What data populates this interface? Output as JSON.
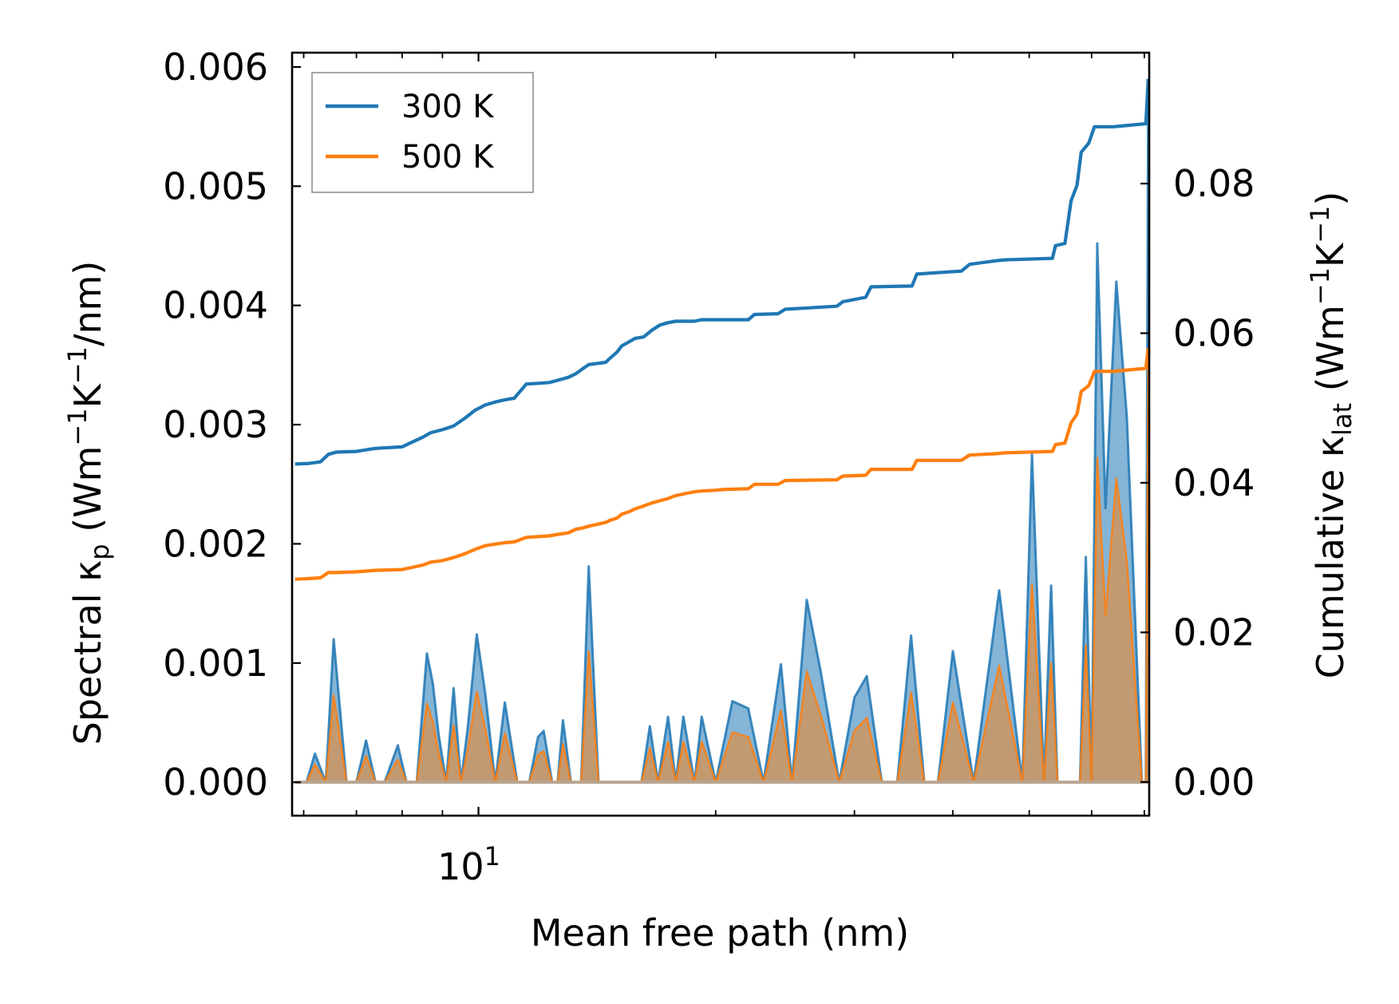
{
  "chart_data": {
    "type": "line",
    "xscale": "log",
    "xlabel": "Mean free path (nm)",
    "xlim": [
      5.8,
      71.0
    ],
    "x_major_ticks": [
      {
        "value": 10,
        "base": "10",
        "exp": "1"
      }
    ],
    "x_minor_ticks": [
      6,
      7,
      8,
      9,
      20,
      30,
      40,
      50,
      60,
      70
    ],
    "left_axis": {
      "label_prefix": "Spectral κ",
      "label_sub": "p",
      "label_unit_open": " (Wm",
      "label_sup1": "−1",
      "label_mid": "K",
      "label_sup2": "−1",
      "label_unit_close": "/nm)",
      "ylim": [
        -0.00028,
        0.00612
      ],
      "ticks": [
        "0.000",
        "0.001",
        "0.002",
        "0.003",
        "0.004",
        "0.005",
        "0.006"
      ]
    },
    "right_axis": {
      "label_prefix": "Cumulative κ",
      "label_sub": "lat",
      "label_unit_open": " (Wm",
      "label_sup1": "−1",
      "label_mid": "K",
      "label_sup2": "−1",
      "label_unit_close": ")",
      "ylim": [
        -0.0045,
        0.0975
      ],
      "ticks": [
        "0.00",
        "0.02",
        "0.04",
        "0.06",
        "0.08"
      ]
    },
    "legend": {
      "position": "upper-left",
      "entries": [
        {
          "name": "300 K",
          "color": "#1f77b4"
        },
        {
          "name": "500 K",
          "color": "#ff7f0e"
        }
      ]
    },
    "spectral_series": [
      {
        "name": "300 K",
        "color": "#1f77b4",
        "x": [
          5.85,
          6.05,
          6.2,
          6.4,
          6.55,
          6.8,
          7.0,
          7.2,
          7.4,
          7.6,
          7.9,
          8.1,
          8.35,
          8.6,
          8.75,
          8.9,
          9.1,
          9.3,
          9.5,
          9.7,
          9.95,
          10.2,
          10.5,
          10.8,
          11.2,
          11.6,
          11.9,
          12.1,
          12.4,
          12.6,
          12.8,
          13.1,
          13.5,
          13.8,
          14.2,
          14.6,
          15.0,
          15.3,
          15.7,
          16.1,
          16.5,
          16.9,
          17.4,
          17.8,
          18.2,
          18.8,
          19.2,
          20.0,
          21.0,
          22.0,
          23.0,
          24.2,
          25.0,
          26.1,
          27.2,
          28.7,
          30.0,
          31.1,
          32.5,
          34.0,
          35.4,
          36.8,
          38.3,
          40.0,
          42.5,
          45.8,
          49.0,
          50.4,
          52.2,
          53.3,
          54.3,
          55.0,
          56.0,
          57.1,
          58.0,
          59.0,
          60.0,
          61.0,
          62.5,
          64.5,
          66.5,
          69.5,
          70.3,
          70.8
        ],
        "y": [
          0,
          0,
          0.00024,
          0,
          0.0012,
          0,
          0,
          0.00035,
          0,
          0,
          0.00031,
          0,
          0,
          0.00108,
          0.00083,
          0.0004,
          0,
          0.00079,
          0,
          0.00048,
          0.00124,
          0.00074,
          0,
          0.00067,
          0,
          0,
          0.00038,
          0.00043,
          0,
          0,
          0.00052,
          0,
          0,
          0.00181,
          0,
          0,
          0,
          0,
          0,
          0,
          0.00047,
          0,
          0.00055,
          0,
          0.00055,
          0,
          0.00055,
          0,
          0.00068,
          0.00062,
          0,
          0.00099,
          0,
          0.00153,
          0.00092,
          0,
          0.00071,
          0.00089,
          0,
          0,
          0.00123,
          0,
          0,
          0.0011,
          0,
          0.00161,
          0,
          0.00275,
          0,
          0.00165,
          0,
          0,
          0,
          0,
          0,
          0.00189,
          0,
          0.00452,
          0.0023,
          0.0042,
          0.00307,
          0,
          0,
          0.00585
        ]
      },
      {
        "name": "500 K",
        "color": "#ff7f0e",
        "x": [
          5.85,
          6.05,
          6.2,
          6.4,
          6.55,
          6.8,
          7.0,
          7.2,
          7.4,
          7.6,
          7.9,
          8.1,
          8.35,
          8.6,
          8.75,
          8.9,
          9.1,
          9.3,
          9.5,
          9.7,
          9.95,
          10.2,
          10.5,
          10.8,
          11.2,
          11.6,
          11.9,
          12.1,
          12.4,
          12.6,
          12.8,
          13.1,
          13.5,
          13.8,
          14.2,
          14.6,
          15.0,
          15.3,
          15.7,
          16.1,
          16.5,
          16.9,
          17.4,
          17.8,
          18.2,
          18.8,
          19.2,
          20.0,
          21.0,
          22.0,
          23.0,
          24.2,
          25.0,
          26.1,
          27.2,
          28.7,
          30.0,
          31.1,
          32.5,
          34.0,
          35.4,
          36.8,
          38.3,
          40.0,
          42.5,
          45.8,
          49.0,
          50.4,
          52.2,
          53.3,
          54.3,
          55.0,
          56.0,
          57.1,
          58.0,
          59.0,
          60.0,
          61.0,
          62.5,
          64.5,
          66.5,
          69.5,
          70.3,
          70.8
        ],
        "y": [
          0,
          0,
          0.00015,
          0,
          0.00073,
          0,
          0,
          0.00022,
          0,
          0,
          0.00019,
          0,
          0,
          0.00066,
          0.00051,
          0.00024,
          0,
          0.00048,
          0,
          0.00029,
          0.00076,
          0.00045,
          0,
          0.00041,
          0,
          0,
          0.00023,
          0.00026,
          0,
          0,
          0.00032,
          0,
          0,
          0.0011,
          0,
          0,
          0,
          0,
          0,
          0,
          0.00029,
          0,
          0.00034,
          0,
          0.00034,
          0,
          0.00034,
          0,
          0.00042,
          0.00038,
          0,
          0.0006,
          0,
          0.00093,
          0.00056,
          0,
          0.00043,
          0.00054,
          0,
          0,
          0.00075,
          0,
          0,
          0.00067,
          0,
          0.00098,
          0,
          0.00166,
          0,
          0.001,
          0,
          0,
          0,
          0,
          0,
          0.00115,
          0,
          0.00272,
          0.0014,
          0.00255,
          0.00186,
          0,
          0,
          0.00355
        ]
      }
    ],
    "cumulative_series": [
      {
        "name": "300 K",
        "color": "#1f77b4",
        "x": [
          5.85,
          6.1,
          6.3,
          6.45,
          6.6,
          7.0,
          7.4,
          8.0,
          8.5,
          8.7,
          9.0,
          9.3,
          9.6,
          9.9,
          10.2,
          10.5,
          10.8,
          11.1,
          11.5,
          11.9,
          12.3,
          12.6,
          13.0,
          13.3,
          13.5,
          13.8,
          14.5,
          14.7,
          15.0,
          15.2,
          15.5,
          15.8,
          16.2,
          16.6,
          17.0,
          17.4,
          17.8,
          18.4,
          18.8,
          19.2,
          20.0,
          20.4,
          22.0,
          22.4,
          24.0,
          24.5,
          28.5,
          29.0,
          31.0,
          31.5,
          35.5,
          36.0,
          41.0,
          42.0,
          45.5,
          46.5,
          53.5,
          54.0,
          55.5,
          56.5,
          57.5,
          58.2,
          59.5,
          60.5,
          62.5,
          64.0,
          70.3,
          70.8
        ],
        "y": [
          0.0425,
          0.0426,
          0.0428,
          0.0438,
          0.0441,
          0.0442,
          0.0446,
          0.0448,
          0.0461,
          0.0467,
          0.0471,
          0.0476,
          0.0486,
          0.0497,
          0.0504,
          0.0508,
          0.0511,
          0.0513,
          0.0532,
          0.0533,
          0.0534,
          0.0537,
          0.0541,
          0.0546,
          0.0551,
          0.0558,
          0.0561,
          0.0567,
          0.0575,
          0.0583,
          0.0588,
          0.0593,
          0.0595,
          0.0604,
          0.0611,
          0.0614,
          0.0616,
          0.0616,
          0.0616,
          0.0618,
          0.0618,
          0.0618,
          0.0618,
          0.0625,
          0.0626,
          0.0632,
          0.0636,
          0.0642,
          0.0648,
          0.0662,
          0.0663,
          0.0679,
          0.0683,
          0.0692,
          0.0697,
          0.0698,
          0.07,
          0.0717,
          0.072,
          0.0777,
          0.0798,
          0.0842,
          0.0854,
          0.0876,
          0.0876,
          0.0876,
          0.088,
          0.094
        ]
      },
      {
        "name": "500 K",
        "color": "#ff7f0e",
        "x": [
          5.85,
          6.1,
          6.3,
          6.45,
          6.6,
          7.0,
          7.4,
          8.0,
          8.5,
          8.7,
          9.0,
          9.3,
          9.6,
          9.9,
          10.2,
          10.5,
          10.8,
          11.1,
          11.5,
          11.9,
          12.3,
          12.6,
          13.0,
          13.3,
          13.5,
          13.8,
          14.5,
          14.7,
          15.0,
          15.2,
          15.5,
          15.8,
          16.2,
          16.6,
          17.0,
          17.4,
          17.8,
          18.4,
          18.8,
          19.2,
          20.0,
          20.4,
          22.0,
          22.4,
          24.0,
          24.5,
          28.5,
          29.0,
          31.0,
          31.5,
          35.5,
          36.0,
          41.0,
          42.0,
          45.5,
          46.5,
          53.5,
          54.0,
          55.5,
          56.5,
          57.5,
          58.2,
          59.5,
          60.5,
          62.5,
          64.0,
          70.3,
          70.8
        ],
        "y": [
          0.0271,
          0.0272,
          0.0273,
          0.028,
          0.028,
          0.0281,
          0.0283,
          0.0284,
          0.029,
          0.0294,
          0.0296,
          0.03,
          0.0305,
          0.0311,
          0.0316,
          0.0318,
          0.032,
          0.0321,
          0.0327,
          0.0328,
          0.0329,
          0.0331,
          0.0333,
          0.0338,
          0.0339,
          0.0342,
          0.0347,
          0.035,
          0.0353,
          0.0358,
          0.0361,
          0.0365,
          0.0369,
          0.0373,
          0.0376,
          0.0379,
          0.0383,
          0.0386,
          0.0388,
          0.0389,
          0.039,
          0.0391,
          0.0392,
          0.0398,
          0.0398,
          0.0403,
          0.0404,
          0.0409,
          0.041,
          0.0418,
          0.0418,
          0.043,
          0.043,
          0.0437,
          0.0439,
          0.044,
          0.0442,
          0.0451,
          0.0453,
          0.048,
          0.0492,
          0.0522,
          0.053,
          0.0549,
          0.0549,
          0.0549,
          0.0553,
          0.058
        ]
      }
    ]
  }
}
